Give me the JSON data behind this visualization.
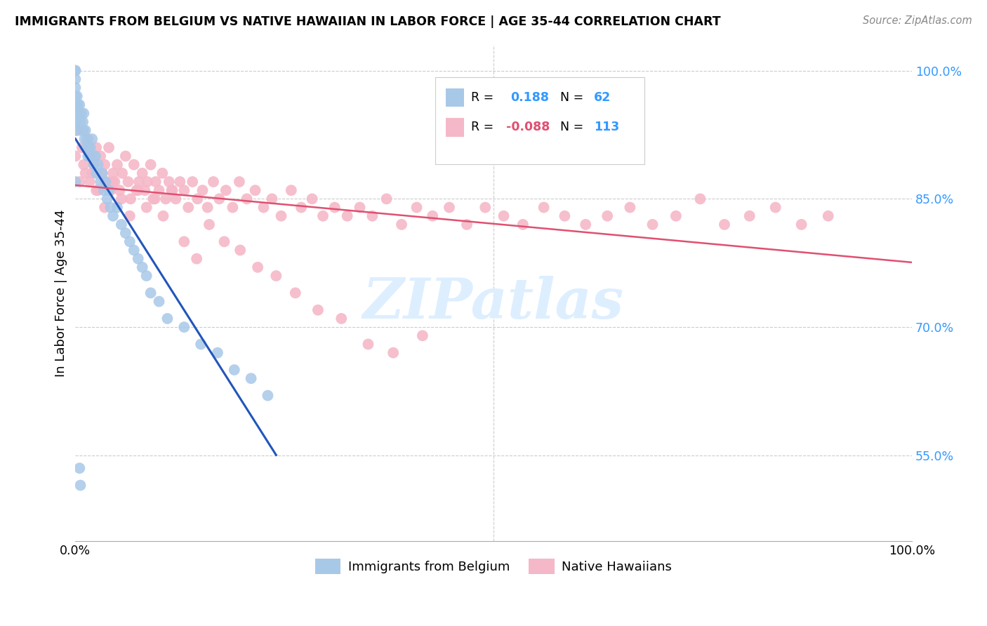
{
  "title": "IMMIGRANTS FROM BELGIUM VS NATIVE HAWAIIAN IN LABOR FORCE | AGE 35-44 CORRELATION CHART",
  "source": "Source: ZipAtlas.com",
  "ylabel": "In Labor Force | Age 35-44",
  "xlim": [
    0.0,
    1.0
  ],
  "ylim": [
    0.45,
    1.03
  ],
  "yticks": [
    0.55,
    0.7,
    0.85,
    1.0
  ],
  "ytick_labels": [
    "55.0%",
    "70.0%",
    "85.0%",
    "100.0%"
  ],
  "xticks": [
    0.0,
    0.2,
    0.4,
    0.6,
    0.8,
    1.0
  ],
  "xtick_labels": [
    "0.0%",
    "",
    "",
    "",
    "",
    "100.0%"
  ],
  "r_belgium": 0.188,
  "n_belgium": 62,
  "r_hawaiian": -0.088,
  "n_hawaiian": 113,
  "legend_labels": [
    "Immigrants from Belgium",
    "Native Hawaiians"
  ],
  "blue_color": "#a8c8e8",
  "pink_color": "#f5b8c8",
  "blue_line_color": "#2255bb",
  "pink_line_color": "#e05070",
  "tick_color": "#3399ff",
  "watermark_color": "#ddeeff",
  "belgium_x": [
    0.0,
    0.0,
    0.0,
    0.0,
    0.0,
    0.0,
    0.0,
    0.0,
    0.0,
    0.0,
    0.002,
    0.003,
    0.004,
    0.005,
    0.006,
    0.007,
    0.008,
    0.009,
    0.01,
    0.01,
    0.011,
    0.012,
    0.013,
    0.014,
    0.015,
    0.016,
    0.017,
    0.018,
    0.02,
    0.021,
    0.022,
    0.024,
    0.025,
    0.027,
    0.03,
    0.032,
    0.034,
    0.036,
    0.038,
    0.04,
    0.042,
    0.045,
    0.05,
    0.055,
    0.06,
    0.065,
    0.07,
    0.075,
    0.08,
    0.085,
    0.09,
    0.1,
    0.11,
    0.13,
    0.15,
    0.17,
    0.19,
    0.21,
    0.23,
    0.005,
    0.006,
    0.0
  ],
  "belgium_y": [
    1.0,
    1.0,
    0.99,
    0.98,
    0.97,
    0.96,
    0.96,
    0.95,
    0.94,
    0.93,
    0.97,
    0.96,
    0.95,
    0.96,
    0.94,
    0.95,
    0.93,
    0.94,
    0.95,
    0.93,
    0.92,
    0.93,
    0.91,
    0.92,
    0.9,
    0.91,
    0.9,
    0.91,
    0.92,
    0.9,
    0.89,
    0.9,
    0.88,
    0.89,
    0.87,
    0.88,
    0.86,
    0.87,
    0.85,
    0.86,
    0.84,
    0.83,
    0.84,
    0.82,
    0.81,
    0.8,
    0.79,
    0.78,
    0.77,
    0.76,
    0.74,
    0.73,
    0.71,
    0.7,
    0.68,
    0.67,
    0.65,
    0.64,
    0.62,
    0.535,
    0.515,
    0.87
  ],
  "hawaiian_x": [
    0.0,
    0.003,
    0.005,
    0.008,
    0.01,
    0.012,
    0.015,
    0.017,
    0.019,
    0.02,
    0.022,
    0.025,
    0.027,
    0.03,
    0.032,
    0.035,
    0.037,
    0.04,
    0.042,
    0.045,
    0.047,
    0.05,
    0.053,
    0.056,
    0.06,
    0.063,
    0.066,
    0.07,
    0.073,
    0.076,
    0.08,
    0.083,
    0.086,
    0.09,
    0.093,
    0.096,
    0.1,
    0.104,
    0.108,
    0.112,
    0.116,
    0.12,
    0.125,
    0.13,
    0.135,
    0.14,
    0.146,
    0.152,
    0.158,
    0.165,
    0.172,
    0.18,
    0.188,
    0.196,
    0.205,
    0.215,
    0.225,
    0.235,
    0.246,
    0.258,
    0.27,
    0.283,
    0.296,
    0.31,
    0.325,
    0.34,
    0.355,
    0.372,
    0.39,
    0.408,
    0.427,
    0.447,
    0.468,
    0.49,
    0.512,
    0.535,
    0.56,
    0.585,
    0.61,
    0.636,
    0.663,
    0.69,
    0.718,
    0.747,
    0.776,
    0.806,
    0.837,
    0.868,
    0.9,
    0.015,
    0.025,
    0.035,
    0.045,
    0.055,
    0.065,
    0.075,
    0.085,
    0.095,
    0.105,
    0.115,
    0.13,
    0.145,
    0.16,
    0.178,
    0.197,
    0.218,
    0.24,
    0.263,
    0.29,
    0.318,
    0.35,
    0.38,
    0.415
  ],
  "hawaiian_y": [
    0.9,
    0.93,
    0.87,
    0.91,
    0.89,
    0.88,
    0.92,
    0.87,
    0.9,
    0.88,
    0.89,
    0.91,
    0.86,
    0.9,
    0.88,
    0.89,
    0.87,
    0.91,
    0.86,
    0.88,
    0.87,
    0.89,
    0.86,
    0.88,
    0.9,
    0.87,
    0.85,
    0.89,
    0.86,
    0.87,
    0.88,
    0.86,
    0.87,
    0.89,
    0.85,
    0.87,
    0.86,
    0.88,
    0.85,
    0.87,
    0.86,
    0.85,
    0.87,
    0.86,
    0.84,
    0.87,
    0.85,
    0.86,
    0.84,
    0.87,
    0.85,
    0.86,
    0.84,
    0.87,
    0.85,
    0.86,
    0.84,
    0.85,
    0.83,
    0.86,
    0.84,
    0.85,
    0.83,
    0.84,
    0.83,
    0.84,
    0.83,
    0.85,
    0.82,
    0.84,
    0.83,
    0.84,
    0.82,
    0.84,
    0.83,
    0.82,
    0.84,
    0.83,
    0.82,
    0.83,
    0.84,
    0.82,
    0.83,
    0.85,
    0.82,
    0.83,
    0.84,
    0.82,
    0.83,
    0.92,
    0.86,
    0.84,
    0.87,
    0.85,
    0.83,
    0.86,
    0.84,
    0.85,
    0.83,
    0.86,
    0.8,
    0.78,
    0.82,
    0.8,
    0.79,
    0.77,
    0.76,
    0.74,
    0.72,
    0.71,
    0.68,
    0.67,
    0.69
  ]
}
